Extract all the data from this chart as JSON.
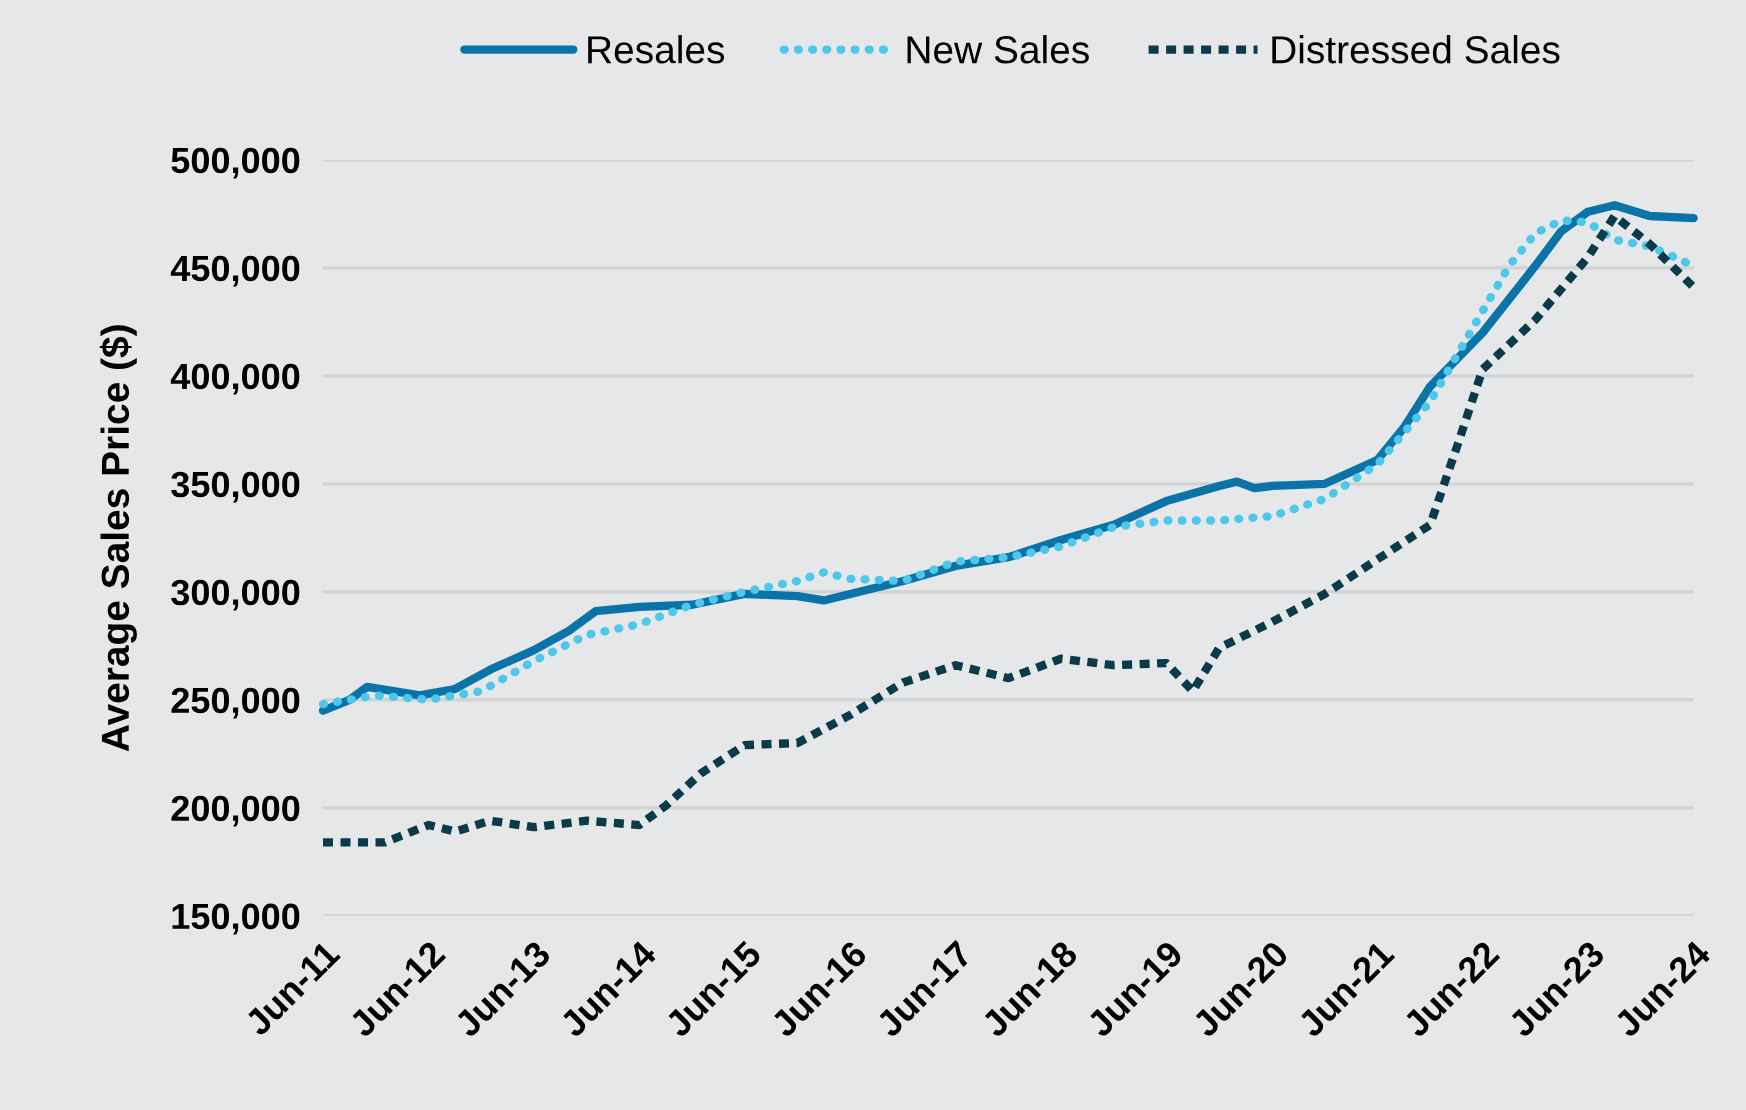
{
  "chart_data": {
    "type": "line",
    "ylabel": "Average Sales Price ($)",
    "series": [
      {
        "name": "Resales",
        "color": "#0a74a8",
        "line_style": "solid",
        "x": [
          "2011-06",
          "2011-09",
          "2011-11",
          "2012-02",
          "2012-05",
          "2012-09",
          "2013-01",
          "2013-06",
          "2013-10",
          "2014-01",
          "2014-06",
          "2014-12",
          "2015-06",
          "2015-12",
          "2016-03",
          "2016-06",
          "2016-12",
          "2017-06",
          "2017-12",
          "2018-06",
          "2018-12",
          "2019-06",
          "2019-12",
          "2020-02",
          "2020-04",
          "2020-06",
          "2020-12",
          "2021-06",
          "2021-09",
          "2021-12",
          "2022-06",
          "2022-12",
          "2023-03",
          "2023-06",
          "2023-09",
          "2024-01",
          "2024-06"
        ],
        "values": [
          245000,
          250000,
          256000,
          254000,
          252000,
          255000,
          264000,
          273000,
          282000,
          291000,
          293000,
          294000,
          299000,
          298000,
          296000,
          299000,
          305000,
          312000,
          316000,
          324000,
          331000,
          342000,
          349000,
          351000,
          348000,
          349000,
          350000,
          361000,
          376000,
          395000,
          420000,
          451000,
          467000,
          476000,
          479000,
          474000,
          473000
        ]
      },
      {
        "name": "New Sales",
        "color": "#4dc8ea",
        "line_style": "dotted",
        "x": [
          "2011-06",
          "2011-12",
          "2012-06",
          "2012-12",
          "2013-06",
          "2013-12",
          "2014-06",
          "2014-12",
          "2015-06",
          "2015-12",
          "2016-03",
          "2016-06",
          "2016-12",
          "2017-06",
          "2017-12",
          "2018-06",
          "2018-12",
          "2019-06",
          "2019-12",
          "2020-06",
          "2020-12",
          "2021-06",
          "2021-12",
          "2022-06",
          "2022-09",
          "2022-12",
          "2023-03",
          "2023-06",
          "2023-09",
          "2024-01",
          "2024-06"
        ],
        "values": [
          248000,
          252000,
          250000,
          254000,
          268000,
          280000,
          285000,
          294000,
          300000,
          305000,
          309000,
          306000,
          305000,
          314000,
          316000,
          321000,
          330000,
          333000,
          333000,
          335000,
          343000,
          359000,
          388000,
          430000,
          451000,
          466000,
          472000,
          471000,
          463000,
          460000,
          451000
        ]
      },
      {
        "name": "Distressed Sales",
        "color": "#0b3a4a",
        "line_style": "dashed",
        "x": [
          "2011-06",
          "2012-01",
          "2012-06",
          "2012-09",
          "2013-01",
          "2013-06",
          "2013-12",
          "2014-06",
          "2014-09",
          "2015-01",
          "2015-06",
          "2015-12",
          "2016-06",
          "2016-12",
          "2017-06",
          "2017-12",
          "2018-06",
          "2018-12",
          "2019-06",
          "2019-09",
          "2019-12",
          "2020-06",
          "2020-12",
          "2021-06",
          "2021-12",
          "2022-03",
          "2022-06",
          "2022-12",
          "2023-06",
          "2023-09",
          "2024-01",
          "2024-06"
        ],
        "values": [
          184000,
          184000,
          192000,
          189000,
          194000,
          191000,
          194000,
          192000,
          201000,
          216000,
          229000,
          230000,
          243000,
          258000,
          266000,
          260000,
          269000,
          266000,
          267000,
          254000,
          274000,
          286000,
          299000,
          315000,
          331000,
          366000,
          403000,
          426000,
          455000,
          474000,
          461000,
          441000
        ]
      }
    ],
    "xlim": [
      "2011-06",
      "2024-06"
    ],
    "xticks": [
      {
        "value": "2011-06",
        "label": "Jun-11"
      },
      {
        "value": "2012-06",
        "label": "Jun-12"
      },
      {
        "value": "2013-06",
        "label": "Jun-13"
      },
      {
        "value": "2014-06",
        "label": "Jun-14"
      },
      {
        "value": "2015-06",
        "label": "Jun-15"
      },
      {
        "value": "2016-06",
        "label": "Jun-16"
      },
      {
        "value": "2017-06",
        "label": "Jun-17"
      },
      {
        "value": "2018-06",
        "label": "Jun-18"
      },
      {
        "value": "2019-06",
        "label": "Jun-19"
      },
      {
        "value": "2020-06",
        "label": "Jun-20"
      },
      {
        "value": "2021-06",
        "label": "Jun-21"
      },
      {
        "value": "2022-06",
        "label": "Jun-22"
      },
      {
        "value": "2023-06",
        "label": "Jun-23"
      },
      {
        "value": "2024-06",
        "label": "Jun-24"
      }
    ],
    "ylim": [
      150000,
      500000
    ],
    "yticks": [
      {
        "value": 150000,
        "label": "150,000"
      },
      {
        "value": 200000,
        "label": "200,000"
      },
      {
        "value": 250000,
        "label": "250,000"
      },
      {
        "value": 300000,
        "label": "300,000"
      },
      {
        "value": 350000,
        "label": "350,000"
      },
      {
        "value": 400000,
        "label": "400,000"
      },
      {
        "value": 450000,
        "label": "450,000"
      },
      {
        "value": 500000,
        "label": "500,000"
      }
    ],
    "grid": "y",
    "legend": "top",
    "marker": "none"
  }
}
